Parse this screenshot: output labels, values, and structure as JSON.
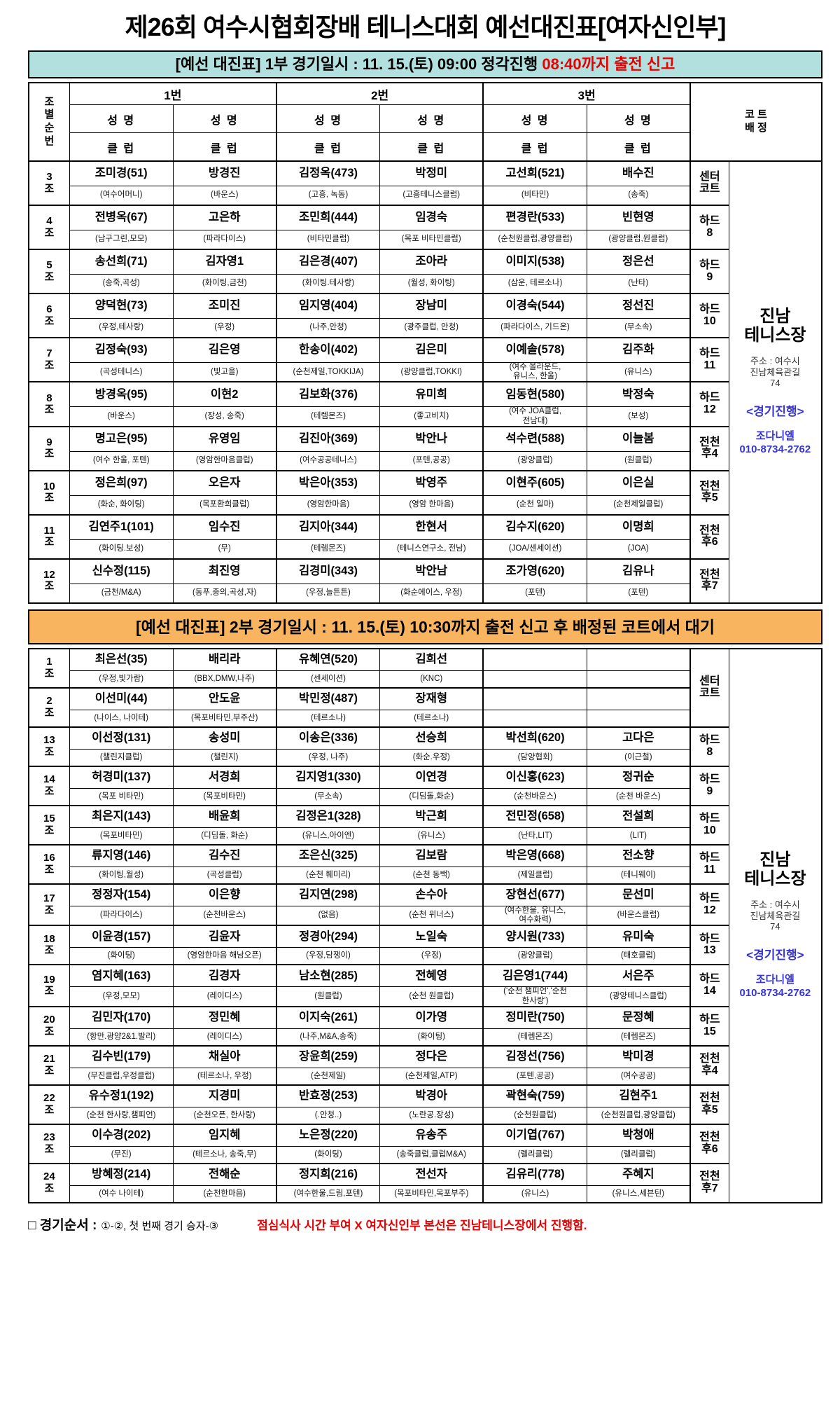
{
  "title": "제26회 여수시협회장배 테니스대회 예선대진표[여자신인부]",
  "colors": {
    "part1_bar": "#b2e0de",
    "part2_bar": "#f9b45f",
    "alert_red": "#e80000",
    "info_blue": "#3434d8"
  },
  "venue": {
    "name": "진남\n테니스장",
    "address": "주소 : 여수시\n진남체육관길\n74",
    "progress": "<경기진행>",
    "manager": "조다니엘",
    "phone": "010-8734-2762"
  },
  "footer": {
    "label": "□ 경기순서 :",
    "rule": "①-②, 첫 번째 경기 승자-③",
    "note": "점심식사 시간 부여 X 여자신인부 본선은 진남테니스장에서 진행함."
  },
  "part1": {
    "header": {
      "main": "[예선 대진표] 1부 경기일시 : 11. 15.(토) 09:00 정각진행 ",
      "highlight": "08:40까지 출전 신고"
    },
    "columns": {
      "group_stacked": "조\n별\n순\n번",
      "pairs": [
        "1번",
        "2번",
        "3번"
      ],
      "name": "성 명",
      "club": "클 럽",
      "court": "코 트\n배 정"
    },
    "rows": [
      {
        "group": "3조",
        "court": "센터\n코트",
        "players": [
          {
            "name": "조미경(51)",
            "club": "(여수어머니)"
          },
          {
            "name": "방경진",
            "club": "(바운스)"
          },
          {
            "name": "김정옥(473)",
            "club": "(고흥, 녹동)"
          },
          {
            "name": "박정미",
            "club": "(고흥테니스클럽)"
          },
          {
            "name": "고선희(521)",
            "club": "(비타민)"
          },
          {
            "name": "배수진",
            "club": "(송죽)"
          }
        ]
      },
      {
        "group": "4조",
        "court": "하드\n8",
        "players": [
          {
            "name": "전병옥(67)",
            "club": "(남구그린,모모)"
          },
          {
            "name": "고은하",
            "club": "(파라다이스)"
          },
          {
            "name": "조민희(444)",
            "club": "(비타민클럽)"
          },
          {
            "name": "임경숙",
            "club": "(목포 비타민클럽)"
          },
          {
            "name": "편경란(533)",
            "club": "(순천원클럽,광양클럽)"
          },
          {
            "name": "빈현영",
            "club": "(광양클럽,원클럽)"
          }
        ]
      },
      {
        "group": "5조",
        "court": "하드\n9",
        "players": [
          {
            "name": "송선희(71)",
            "club": "(송죽,곡성)"
          },
          {
            "name": "김자영1",
            "club": "(화이팅,금천)"
          },
          {
            "name": "김은경(407)",
            "club": "(화이팅.테사랑)"
          },
          {
            "name": "조아라",
            "club": "(월성, 화이팅)"
          },
          {
            "name": "이미지(538)",
            "club": "(삼운, 테르소나)"
          },
          {
            "name": "정은선",
            "club": "(난타)"
          }
        ]
      },
      {
        "group": "6조",
        "court": "하드\n10",
        "players": [
          {
            "name": "양덕현(73)",
            "club": "(우정,테사랑)"
          },
          {
            "name": "조미진",
            "club": "(우정)"
          },
          {
            "name": "임지영(404)",
            "club": "(나주,안청)"
          },
          {
            "name": "장남미",
            "club": "(광주클럽, 안청)"
          },
          {
            "name": "이경숙(544)",
            "club": "(파라다이스, 기드온)"
          },
          {
            "name": "정선진",
            "club": "(무소속)"
          }
        ]
      },
      {
        "group": "7조",
        "court": "하드\n11",
        "players": [
          {
            "name": "김정숙(93)",
            "club": "(곡성테니스)"
          },
          {
            "name": "김은영",
            "club": "(빛고을)"
          },
          {
            "name": "한송이(402)",
            "club": "(순천제일,TOKKIJA)"
          },
          {
            "name": "김은미",
            "club": "(광양클럽,TOKKI)"
          },
          {
            "name": "이예솔(578)",
            "club": "(여수 올라운드,\n유니스, 한울)"
          },
          {
            "name": "김주화",
            "club": "(유니스)"
          }
        ]
      },
      {
        "group": "8조",
        "court": "하드\n12",
        "players": [
          {
            "name": "방경옥(95)",
            "club": "(바운스)"
          },
          {
            "name": "이현2",
            "club": "(장성, 송죽)"
          },
          {
            "name": "김보화(376)",
            "club": "(테렘몬즈)"
          },
          {
            "name": "유미희",
            "club": "(좋고비치)"
          },
          {
            "name": "임동현(580)",
            "club": "(여수 JOA클럽,\n전남대)"
          },
          {
            "name": "박정숙",
            "club": "(보성)"
          }
        ]
      },
      {
        "group": "9조",
        "court": "전천\n후4",
        "players": [
          {
            "name": "명고은(95)",
            "club": "(여수 한울, 포텐)"
          },
          {
            "name": "유영임",
            "club": "(영암한마음클럽)"
          },
          {
            "name": "김진아(369)",
            "club": "(여수공공테니스)"
          },
          {
            "name": "박안나",
            "club": "(포텐,공공)"
          },
          {
            "name": "석수련(588)",
            "club": "(광양클럽)"
          },
          {
            "name": "이늘봄",
            "club": "(원클럽)"
          }
        ]
      },
      {
        "group": "10조",
        "court": "전천\n후5",
        "players": [
          {
            "name": "정은희(97)",
            "club": "(화순, 화이팅)"
          },
          {
            "name": "오은자",
            "club": "(목포환희클럽)"
          },
          {
            "name": "박은아(353)",
            "club": "(영암한마음)"
          },
          {
            "name": "박영주",
            "club": "(영암 한마음)"
          },
          {
            "name": "이현주(605)",
            "club": "(순천 일마)"
          },
          {
            "name": "이은실",
            "club": "(순천제일클럽)"
          }
        ]
      },
      {
        "group": "11조",
        "court": "전천\n후6",
        "players": [
          {
            "name": "김연주1(101)",
            "club": "(화이팅.보성)"
          },
          {
            "name": "임수진",
            "club": "(무)"
          },
          {
            "name": "김지아(344)",
            "club": "(테렘몬즈)"
          },
          {
            "name": "한현서",
            "club": "(테니스연구소, 전남)"
          },
          {
            "name": "김수지(620)",
            "club": "(JOA/센세이션)"
          },
          {
            "name": "이명희",
            "club": "(JOA)"
          }
        ]
      },
      {
        "group": "12조",
        "court": "전천\n후7",
        "players": [
          {
            "name": "신수정(115)",
            "club": "(금천/M&A)"
          },
          {
            "name": "최진영",
            "club": "(동푸,중의,곡성,자)"
          },
          {
            "name": "김경미(343)",
            "club": "(우정,늘튼튼)"
          },
          {
            "name": "박안남",
            "club": "(화순에이스, 우정)"
          },
          {
            "name": "조가영(620)",
            "club": "(포텐)"
          },
          {
            "name": "김유나",
            "club": "(포텐)"
          }
        ]
      }
    ]
  },
  "part2": {
    "header": {
      "main": "[예선 대진표] 2부 경기일시 : 11. 15.(토) 10:30까지 출전 신고 후 배정된 코트에서 대기"
    },
    "rows": [
      {
        "group": "1조",
        "court": "센터\n코트",
        "court_span": 2,
        "players": [
          {
            "name": "최은선(35)",
            "club": "(우정,빛가람)"
          },
          {
            "name": "배리라",
            "club": "(BBX,DMW,나주)"
          },
          {
            "name": "유혜연(520)",
            "club": "(센세이션)"
          },
          {
            "name": "김희선",
            "club": "(KNC)"
          },
          {
            "name": "",
            "club": ""
          },
          {
            "name": "",
            "club": ""
          }
        ]
      },
      {
        "group": "2조",
        "court": null,
        "players": [
          {
            "name": "이선미(44)",
            "club": "(나이스, 나이테)"
          },
          {
            "name": "안도윤",
            "club": "(목포비타민,부주산)"
          },
          {
            "name": "박민정(487)",
            "club": "(테르소나)"
          },
          {
            "name": "장재형",
            "club": "(테르소나)"
          },
          {
            "name": "",
            "club": ""
          },
          {
            "name": "",
            "club": ""
          }
        ]
      },
      {
        "group": "13조",
        "court": "하드\n8",
        "players": [
          {
            "name": "이선정(131)",
            "club": "(챌린지클럽)"
          },
          {
            "name": "송성미",
            "club": "(챌린지)"
          },
          {
            "name": "이송은(336)",
            "club": "(우정, 나주)"
          },
          {
            "name": "선승희",
            "club": "(화순.우정)"
          },
          {
            "name": "박선희(620)",
            "club": "(담양협회)"
          },
          {
            "name": "고다은",
            "club": "(이근철)"
          }
        ]
      },
      {
        "group": "14조",
        "court": "하드\n9",
        "players": [
          {
            "name": "허경미(137)",
            "club": "(목포 비타민)"
          },
          {
            "name": "서경희",
            "club": "(목포비타민)"
          },
          {
            "name": "김지영1(330)",
            "club": "(무소속)"
          },
          {
            "name": "이연경",
            "club": "(디딤돌,화순)"
          },
          {
            "name": "이신홍(623)",
            "club": "(순천바운스)"
          },
          {
            "name": "정귀순",
            "club": "(순천 바운스)"
          }
        ]
      },
      {
        "group": "15조",
        "court": "하드\n10",
        "players": [
          {
            "name": "최은지(143)",
            "club": "(목포비타민)"
          },
          {
            "name": "배윤희",
            "club": "(디딤돌, 화순)"
          },
          {
            "name": "김정은1(328)",
            "club": "(유니스,아이엔)"
          },
          {
            "name": "박근희",
            "club": "(유니스)"
          },
          {
            "name": "전민정(658)",
            "club": "(난타,LIT)"
          },
          {
            "name": "전설희",
            "club": "(LIT)"
          }
        ]
      },
      {
        "group": "16조",
        "court": "하드\n11",
        "players": [
          {
            "name": "류지영(146)",
            "club": "(화이팅,월성)"
          },
          {
            "name": "김수진",
            "club": "(곡성클럽)"
          },
          {
            "name": "조은신(325)",
            "club": "(순천 훼미리)"
          },
          {
            "name": "김보람",
            "club": "(순천 동백)"
          },
          {
            "name": "박은영(668)",
            "club": "(제일클럽)"
          },
          {
            "name": "전소향",
            "club": "(테니웨이)"
          }
        ]
      },
      {
        "group": "17조",
        "court": "하드\n12",
        "players": [
          {
            "name": "정정자(154)",
            "club": "(파라다이스)"
          },
          {
            "name": "이은향",
            "club": "(순천바운스)"
          },
          {
            "name": "김지연(298)",
            "club": "(없음)"
          },
          {
            "name": "손수아",
            "club": "(순천 위너스)"
          },
          {
            "name": "장현선(677)",
            "club": "(여수한울, 유니스,\n여수화력)"
          },
          {
            "name": "문선미",
            "club": "(바운스클럽)"
          }
        ]
      },
      {
        "group": "18조",
        "court": "하드\n13",
        "players": [
          {
            "name": "이윤경(157)",
            "club": "(화이팅)"
          },
          {
            "name": "김윤자",
            "club": "(영암한마음 해남오픈)"
          },
          {
            "name": "정경아(294)",
            "club": "(우정,담쟁이)"
          },
          {
            "name": "노일숙",
            "club": "(우정)"
          },
          {
            "name": "양시원(733)",
            "club": "(광양클럽)"
          },
          {
            "name": "유미숙",
            "club": "(태호클럽)"
          }
        ]
      },
      {
        "group": "19조",
        "court": "하드\n14",
        "players": [
          {
            "name": "염지혜(163)",
            "club": "(우정,모모)"
          },
          {
            "name": "김경자",
            "club": "(레이디스)"
          },
          {
            "name": "남소현(285)",
            "club": "(원클럽)"
          },
          {
            "name": "전혜영",
            "club": "(순천 원클럽)"
          },
          {
            "name": "김은영1(744)",
            "club": "('순천 챔피언','순천\n한사랑')"
          },
          {
            "name": "서은주",
            "club": "(광양테니스클럽)"
          }
        ]
      },
      {
        "group": "20조",
        "court": "하드\n15",
        "players": [
          {
            "name": "김민자(170)",
            "club": "(항만.광양2&1.발리)"
          },
          {
            "name": "정민혜",
            "club": "(레이디스)"
          },
          {
            "name": "이지숙(261)",
            "club": "(나주,M&A,송죽)"
          },
          {
            "name": "이가영",
            "club": "(화이팅)"
          },
          {
            "name": "정미란(750)",
            "club": "(테렘몬즈)"
          },
          {
            "name": "문정혜",
            "club": "(테렘몬즈)"
          }
        ]
      },
      {
        "group": "21조",
        "court": "전천\n후4",
        "players": [
          {
            "name": "김수빈(179)",
            "club": "(무진클럽,우정클럽)"
          },
          {
            "name": "채실아",
            "club": "(테르소나, 우정)"
          },
          {
            "name": "장윤희(259)",
            "club": "(순천제일)"
          },
          {
            "name": "정다은",
            "club": "(순천제일,ATP)"
          },
          {
            "name": "김정선(756)",
            "club": "(포텐,공공)"
          },
          {
            "name": "박미경",
            "club": "(여수공공)"
          }
        ]
      },
      {
        "group": "22조",
        "court": "전천\n후5",
        "players": [
          {
            "name": "유수정1(192)",
            "club": "(순천 한사랑,챔피언)"
          },
          {
            "name": "지경미",
            "club": "(순천오픈, 한사랑)"
          },
          {
            "name": "반효정(253)",
            "club": "(.안청..)"
          },
          {
            "name": "박경아",
            "club": "(노란공.장성)"
          },
          {
            "name": "곽현숙(759)",
            "club": "(순천원클럽)"
          },
          {
            "name": "김현주1",
            "club": "(순천원클럽,광양클럽)"
          }
        ]
      },
      {
        "group": "23조",
        "court": "전천\n후6",
        "players": [
          {
            "name": "이수경(202)",
            "club": "(무진)"
          },
          {
            "name": "임지혜",
            "club": "(테르소나, 송죽,무)"
          },
          {
            "name": "노은정(220)",
            "club": "(화이팅)"
          },
          {
            "name": "유송주",
            "club": "(송죽클럽,클럽M&A)"
          },
          {
            "name": "이기엽(767)",
            "club": "(렐리클럽)"
          },
          {
            "name": "박청애",
            "club": "(렐리클럽)"
          }
        ]
      },
      {
        "group": "24조",
        "court": "전천\n후7",
        "players": [
          {
            "name": "방혜정(214)",
            "club": "(여수 나이테)"
          },
          {
            "name": "전해순",
            "club": "(순천한마음)"
          },
          {
            "name": "정지희(216)",
            "club": "(여수한울,드림,포텐)"
          },
          {
            "name": "전선자",
            "club": "(목포비타민,목포부주)"
          },
          {
            "name": "김유리(778)",
            "club": "(유니스)"
          },
          {
            "name": "주혜지",
            "club": "(유니스,세븐틴)"
          }
        ]
      }
    ]
  }
}
